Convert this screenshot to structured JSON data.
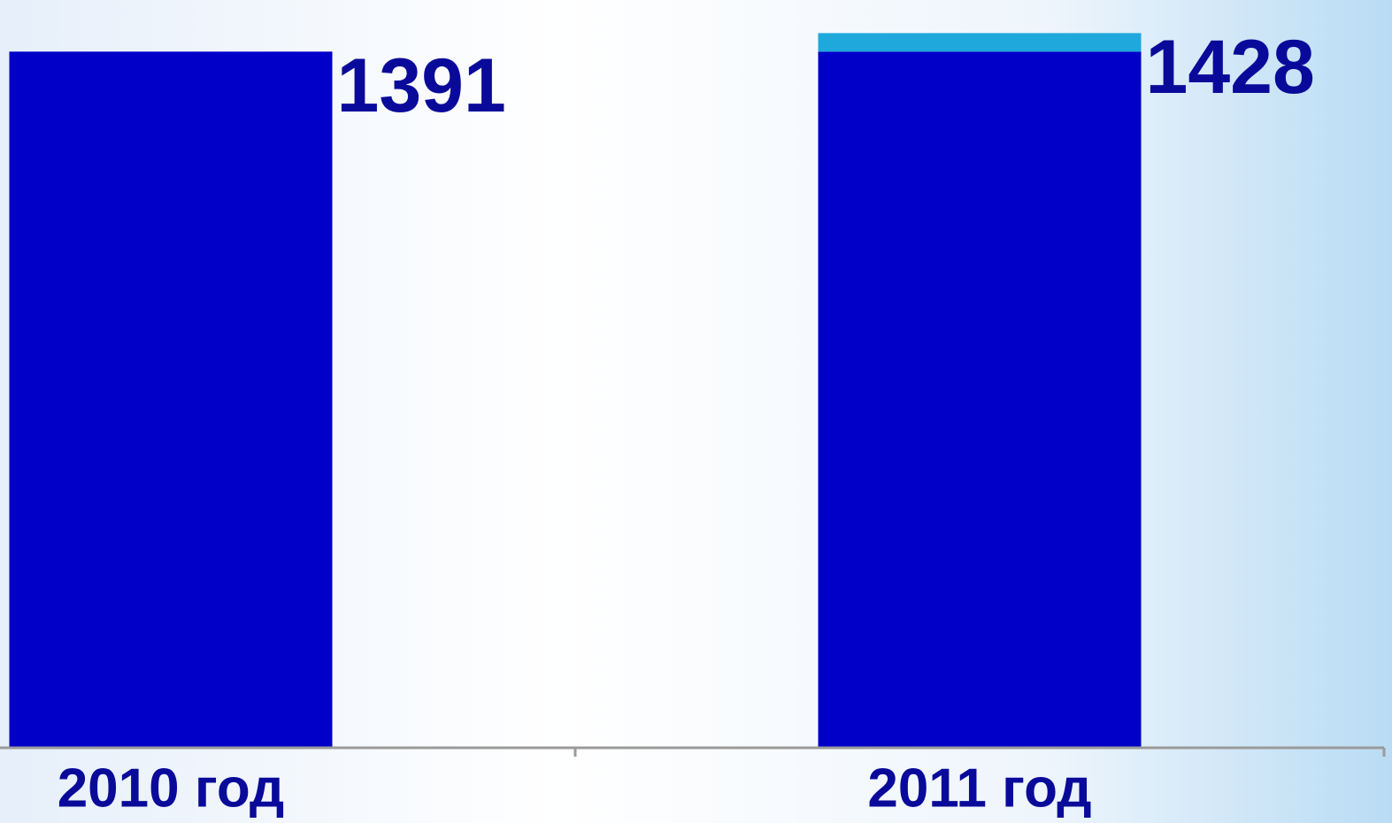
{
  "chart_data": {
    "type": "stacked_bar",
    "categories": [
      "2010 год",
      "2011 год"
    ],
    "series": [
      {
        "color": "#0000c8",
        "values": [
          1391,
          1391
        ]
      },
      {
        "color": "#1fa8dc",
        "values": [
          null,
          37
        ]
      }
    ],
    "totals": [
      1391,
      1428
    ],
    "ylim": [
      0,
      1480
    ]
  }
}
